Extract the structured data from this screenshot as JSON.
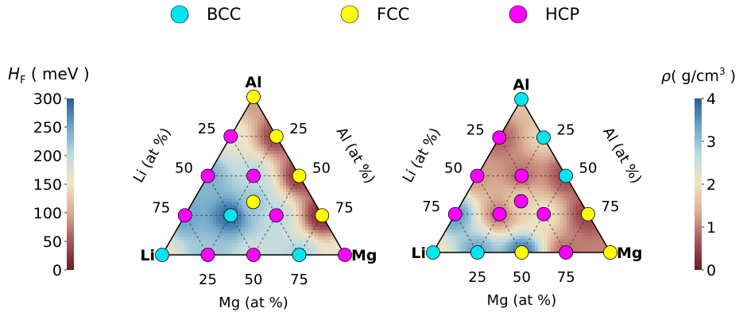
{
  "legend": {
    "items": [
      {
        "label": "BCC",
        "color": "#00e5ee"
      },
      {
        "label": "FCC",
        "color": "#ffff00"
      },
      {
        "label": "HCP",
        "color": "#ff00ff"
      }
    ]
  },
  "colormap": [
    "#6b1a2a",
    "#a8545a",
    "#d9ab92",
    "#f0e4c4",
    "#c0dbe0",
    "#6fa6c9",
    "#2a5c98"
  ],
  "chart_data": [
    {
      "type": "heatmap",
      "subtype": "ternary",
      "vertex_labels": {
        "top": "Al",
        "left": "Li",
        "right": "Mg"
      },
      "axis_labels": {
        "left": "Li (at %)",
        "right": "Al (at %)",
        "bottom": "Mg (at %)"
      },
      "tick_labels": {
        "left": [
          "25",
          "50",
          "75"
        ],
        "right": [
          "75",
          "50",
          "25"
        ],
        "bottom": [
          "25",
          "50",
          "75"
        ]
      },
      "colorbar": {
        "label_main": "H",
        "label_sub": "F",
        "label_rest": " ( meV )",
        "range": [
          0,
          300
        ],
        "ticks": [
          "300",
          "250",
          "200",
          "150",
          "100",
          "50",
          "0"
        ]
      },
      "points": [
        {
          "li": 0,
          "mg": 0,
          "al": 100,
          "phase": "FCC"
        },
        {
          "li": 25,
          "mg": 0,
          "al": 75,
          "phase": "HCP"
        },
        {
          "li": 0,
          "mg": 25,
          "al": 75,
          "phase": "FCC"
        },
        {
          "li": 50,
          "mg": 0,
          "al": 50,
          "phase": "HCP"
        },
        {
          "li": 25,
          "mg": 25,
          "al": 50,
          "phase": "HCP"
        },
        {
          "li": 0,
          "mg": 50,
          "al": 50,
          "phase": "FCC"
        },
        {
          "li": 33.3,
          "mg": 33.3,
          "al": 33.3,
          "phase": "FCC"
        },
        {
          "li": 75,
          "mg": 0,
          "al": 25,
          "phase": "HCP"
        },
        {
          "li": 50,
          "mg": 25,
          "al": 25,
          "phase": "BCC"
        },
        {
          "li": 25,
          "mg": 50,
          "al": 25,
          "phase": "HCP"
        },
        {
          "li": 0,
          "mg": 75,
          "al": 25,
          "phase": "FCC"
        },
        {
          "li": 100,
          "mg": 0,
          "al": 0,
          "phase": "BCC"
        },
        {
          "li": 75,
          "mg": 25,
          "al": 0,
          "phase": "HCP"
        },
        {
          "li": 50,
          "mg": 50,
          "al": 0,
          "phase": "HCP"
        },
        {
          "li": 25,
          "mg": 75,
          "al": 0,
          "phase": "BCC"
        },
        {
          "li": 0,
          "mg": 100,
          "al": 0,
          "phase": "HCP"
        }
      ],
      "field_anchors": [
        {
          "li": 100,
          "mg": 0,
          "al": 0,
          "v": 160
        },
        {
          "li": 0,
          "mg": 100,
          "al": 0,
          "v": 160
        },
        {
          "li": 0,
          "mg": 0,
          "al": 100,
          "v": 90
        },
        {
          "li": 50,
          "mg": 50,
          "al": 0,
          "v": 190
        },
        {
          "li": 50,
          "mg": 0,
          "al": 50,
          "v": 240
        },
        {
          "li": 0,
          "mg": 50,
          "al": 50,
          "v": 30
        },
        {
          "li": 75,
          "mg": 0,
          "al": 25,
          "v": 250
        },
        {
          "li": 50,
          "mg": 25,
          "al": 25,
          "v": 290
        },
        {
          "li": 25,
          "mg": 50,
          "al": 25,
          "v": 200
        },
        {
          "li": 25,
          "mg": 25,
          "al": 50,
          "v": 200
        },
        {
          "li": 0,
          "mg": 75,
          "al": 25,
          "v": 20
        },
        {
          "li": 25,
          "mg": 0,
          "al": 75,
          "v": 160
        },
        {
          "li": 33.3,
          "mg": 33.3,
          "al": 33.3,
          "v": 220
        },
        {
          "li": 0,
          "mg": 25,
          "al": 75,
          "v": 40
        },
        {
          "li": 75,
          "mg": 25,
          "al": 0,
          "v": 220
        },
        {
          "li": 25,
          "mg": 75,
          "al": 0,
          "v": 210
        }
      ]
    },
    {
      "type": "heatmap",
      "subtype": "ternary",
      "vertex_labels": {
        "top": "Al",
        "left": "Li",
        "right": "Mg"
      },
      "axis_labels": {
        "left": "Li (at %)",
        "right": "Al (at %)",
        "bottom": "Mg (at %)"
      },
      "tick_labels": {
        "left": [
          "25",
          "50",
          "75"
        ],
        "right": [
          "75",
          "50",
          "25"
        ],
        "bottom": [
          "25",
          "50",
          "75"
        ]
      },
      "colorbar": {
        "label_main": "ρ",
        "label_rest": "( g/cm",
        "label_sup": "3",
        "label_end": " )",
        "range": [
          0,
          4
        ],
        "ticks": [
          "4",
          "3",
          "2",
          "1",
          "0"
        ]
      },
      "points": [
        {
          "li": 0,
          "mg": 0,
          "al": 100,
          "phase": "BCC"
        },
        {
          "li": 25,
          "mg": 0,
          "al": 75,
          "phase": "HCP"
        },
        {
          "li": 0,
          "mg": 25,
          "al": 75,
          "phase": "BCC"
        },
        {
          "li": 50,
          "mg": 0,
          "al": 50,
          "phase": "HCP"
        },
        {
          "li": 25,
          "mg": 25,
          "al": 50,
          "phase": "HCP"
        },
        {
          "li": 0,
          "mg": 50,
          "al": 50,
          "phase": "BCC"
        },
        {
          "li": 33.3,
          "mg": 33.3,
          "al": 33.3,
          "phase": "HCP"
        },
        {
          "li": 75,
          "mg": 0,
          "al": 25,
          "phase": "HCP"
        },
        {
          "li": 50,
          "mg": 25,
          "al": 25,
          "phase": "HCP"
        },
        {
          "li": 25,
          "mg": 50,
          "al": 25,
          "phase": "HCP"
        },
        {
          "li": 0,
          "mg": 75,
          "al": 25,
          "phase": "FCC"
        },
        {
          "li": 100,
          "mg": 0,
          "al": 0,
          "phase": "BCC"
        },
        {
          "li": 75,
          "mg": 25,
          "al": 0,
          "phase": "BCC"
        },
        {
          "li": 50,
          "mg": 50,
          "al": 0,
          "phase": "FCC"
        },
        {
          "li": 25,
          "mg": 75,
          "al": 0,
          "phase": "HCP"
        },
        {
          "li": 0,
          "mg": 100,
          "al": 0,
          "phase": "FCC"
        }
      ],
      "field_anchors": [
        {
          "li": 100,
          "mg": 0,
          "al": 0,
          "v": 2.0
        },
        {
          "li": 0,
          "mg": 100,
          "al": 0,
          "v": 1.0
        },
        {
          "li": 0,
          "mg": 0,
          "al": 100,
          "v": 1.6
        },
        {
          "li": 75,
          "mg": 25,
          "al": 0,
          "v": 3.3
        },
        {
          "li": 50,
          "mg": 50,
          "al": 0,
          "v": 3.7
        },
        {
          "li": 25,
          "mg": 75,
          "al": 0,
          "v": 0.9
        },
        {
          "li": 75,
          "mg": 0,
          "al": 25,
          "v": 3.4
        },
        {
          "li": 50,
          "mg": 0,
          "al": 50,
          "v": 1.2
        },
        {
          "li": 25,
          "mg": 0,
          "al": 75,
          "v": 0.8
        },
        {
          "li": 0,
          "mg": 25,
          "al": 75,
          "v": 1.8
        },
        {
          "li": 0,
          "mg": 50,
          "al": 50,
          "v": 0.6
        },
        {
          "li": 0,
          "mg": 75,
          "al": 25,
          "v": 0.5
        },
        {
          "li": 50,
          "mg": 25,
          "al": 25,
          "v": 1.0
        },
        {
          "li": 25,
          "mg": 50,
          "al": 25,
          "v": 2.0
        },
        {
          "li": 25,
          "mg": 25,
          "al": 50,
          "v": 0.9
        },
        {
          "li": 33.3,
          "mg": 33.3,
          "al": 33.3,
          "v": 1.8
        }
      ]
    }
  ]
}
